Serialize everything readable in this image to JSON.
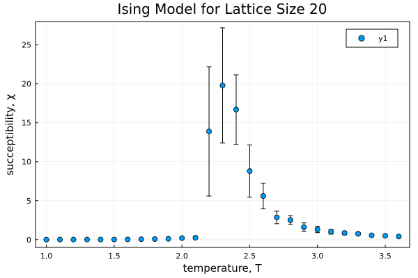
{
  "chart_data": {
    "type": "scatter",
    "title": "Ising Model for Lattice Size 20",
    "xlabel": "temperature, T",
    "ylabel": "succeptibility, χ",
    "xlim": [
      0.92,
      3.68
    ],
    "ylim": [
      -1.0,
      28.0
    ],
    "xticks": [
      "1.0",
      "1.5",
      "2.0",
      "2.5",
      "3.0",
      "3.5"
    ],
    "yticks": [
      "0",
      "5",
      "10",
      "15",
      "20",
      "25"
    ],
    "grid": true,
    "legend_position": "top-right",
    "series": [
      {
        "name": "y1",
        "color": "#009af9",
        "x": [
          1.0,
          1.1,
          1.2,
          1.3,
          1.4,
          1.5,
          1.6,
          1.7,
          1.8,
          1.9,
          2.0,
          2.1,
          2.2,
          2.3,
          2.4,
          2.5,
          2.6,
          2.7,
          2.8,
          2.9,
          3.0,
          3.1,
          3.2,
          3.3,
          3.4,
          3.5,
          3.6
        ],
        "y": [
          0.0,
          0.01,
          0.01,
          0.01,
          0.02,
          0.02,
          0.03,
          0.05,
          0.07,
          0.1,
          0.2,
          0.25,
          13.9,
          19.8,
          16.7,
          8.8,
          5.6,
          2.85,
          2.5,
          1.6,
          1.3,
          1.0,
          0.85,
          0.75,
          0.55,
          0.5,
          0.4
        ],
        "err": [
          0.0,
          0.0,
          0.0,
          0.0,
          0.0,
          0.01,
          0.01,
          0.02,
          0.03,
          0.05,
          0.1,
          0.15,
          8.3,
          7.4,
          4.45,
          3.35,
          1.65,
          0.8,
          0.55,
          0.55,
          0.4,
          0.3,
          0.2,
          0.15,
          0.12,
          0.1,
          0.1
        ]
      }
    ]
  }
}
